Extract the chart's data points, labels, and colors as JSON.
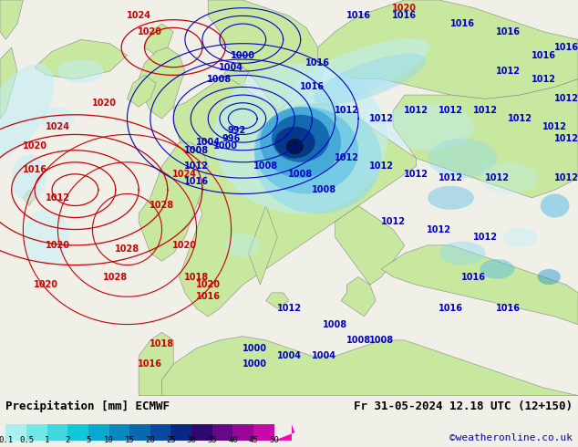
{
  "title_left": "Precipitation [mm] ECMWF",
  "title_right": "Fr 31-05-2024 12.18 UTC (12+150)",
  "credit": "©weatheronline.co.uk",
  "colorbar_levels": [
    0.1,
    0.5,
    1,
    2,
    5,
    10,
    15,
    20,
    25,
    30,
    35,
    40,
    45,
    50
  ],
  "colorbar_colors": [
    "#a8f0f0",
    "#70e8e8",
    "#40d8e0",
    "#10c8d8",
    "#08a8d0",
    "#0888c0",
    "#0868b0",
    "#0848a0",
    "#082888",
    "#300870",
    "#680888",
    "#980898",
    "#c808a8",
    "#f008b8"
  ],
  "bg_color": "#f0f0e8",
  "land_color_main": "#c8e8a0",
  "land_color_dark": "#b8d890",
  "sea_color": "#e8f4f8",
  "atlantic_color": "#f0f8fc",
  "precip_light1": "#c0eef8",
  "precip_light2": "#90daf0",
  "precip_med1": "#50b8e8",
  "precip_med2": "#2090d0",
  "precip_dark1": "#0050a0",
  "precip_dark2": "#002878",
  "precip_darkest": "#001040",
  "isobar_red": "#cc0000",
  "isobar_blue": "#0000cc",
  "coast_color": "#888888",
  "label_fontsize": 7,
  "title_fontsize": 9,
  "credit_fontsize": 8,
  "credit_color": "#0000cc",
  "fig_width": 6.34,
  "fig_height": 4.9,
  "dpi": 100
}
